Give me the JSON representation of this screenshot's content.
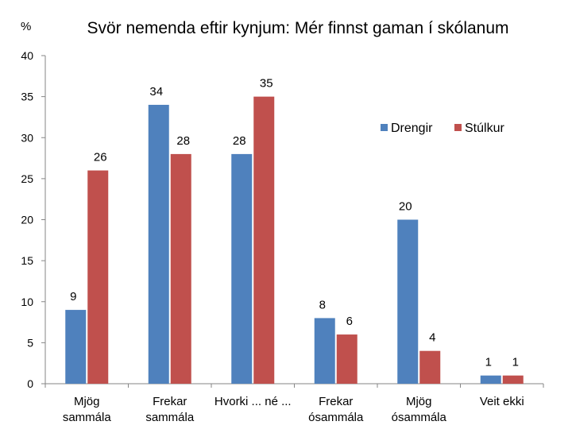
{
  "chart_data": {
    "type": "bar",
    "title": "Svör nemenda eftir kynjum: Mér finnst gaman í skólanum",
    "ylabel": "%",
    "xlabel": "",
    "ylim": [
      0,
      40
    ],
    "yticks": [
      0,
      5,
      10,
      15,
      20,
      25,
      30,
      35,
      40
    ],
    "categories": [
      [
        "Mjög",
        "sammála"
      ],
      [
        "Frekar",
        "sammála"
      ],
      [
        "Hvorki ... né ..."
      ],
      [
        "Frekar",
        "ósammála"
      ],
      [
        "Mjög",
        "ósammála"
      ],
      [
        "Veit ekki"
      ]
    ],
    "series": [
      {
        "name": "Drengir",
        "values": [
          9,
          34,
          28,
          8,
          20,
          1
        ],
        "color": "#4F81BD"
      },
      {
        "name": "Stúlkur",
        "values": [
          26,
          28,
          35,
          6,
          4,
          1
        ],
        "color": "#C0504D"
      }
    ],
    "grid": false,
    "legend": "top-right",
    "data_labels": true
  }
}
